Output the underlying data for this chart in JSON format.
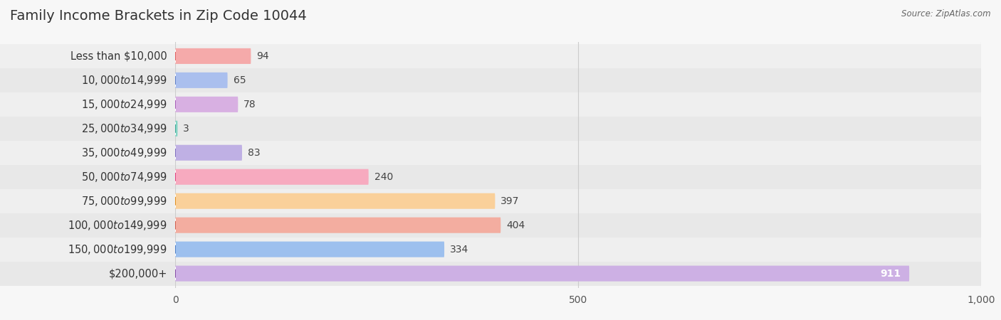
{
  "title": "Family Income Brackets in Zip Code 10044",
  "source": "Source: ZipAtlas.com",
  "categories": [
    "Less than $10,000",
    "$10,000 to $14,999",
    "$15,000 to $24,999",
    "$25,000 to $34,999",
    "$35,000 to $49,999",
    "$50,000 to $74,999",
    "$75,000 to $99,999",
    "$100,000 to $149,999",
    "$150,000 to $199,999",
    "$200,000+"
  ],
  "values": [
    94,
    65,
    78,
    3,
    83,
    240,
    397,
    404,
    334,
    911
  ],
  "bar_colors": [
    "#F5AAAA",
    "#AABFEE",
    "#D8B0E2",
    "#85D4C4",
    "#BFB0E4",
    "#F7AABF",
    "#FAD09A",
    "#F3ADA0",
    "#9DC0EE",
    "#CDB0E4"
  ],
  "circle_colors": [
    "#E06060",
    "#6080C8",
    "#A860B8",
    "#40A898",
    "#8070C0",
    "#E04080",
    "#E09020",
    "#D06050",
    "#5080C8",
    "#8850A8"
  ],
  "row_bg_even": "#EFEFEF",
  "row_bg_odd": "#E8E8E8",
  "background_color": "#F7F7F7",
  "xlim": [
    0,
    1000
  ],
  "xticks": [
    0,
    500,
    1000
  ],
  "title_fontsize": 14,
  "label_fontsize": 10.5,
  "value_fontsize": 10
}
